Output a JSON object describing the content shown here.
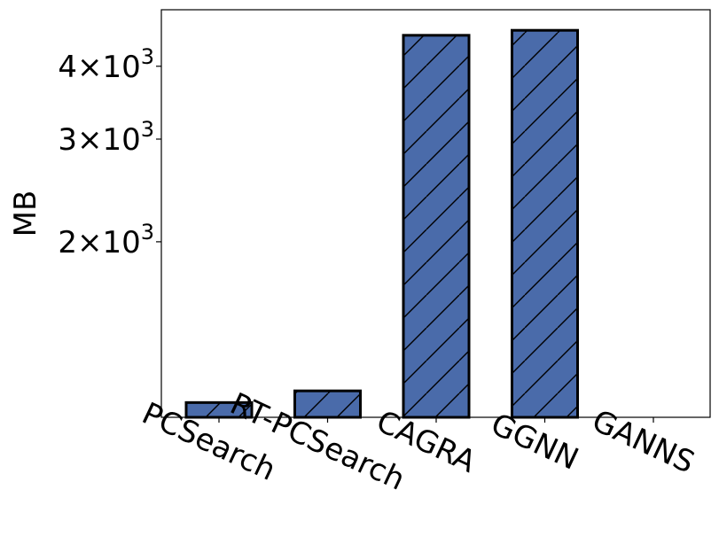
{
  "chart_data": {
    "type": "bar",
    "yscale": "log",
    "ylabel": "MB",
    "xlabel": "",
    "title": "",
    "categories": [
      "PCSearch",
      "RT-PCSearch",
      "CAGRA",
      "GGNN",
      "GANNS"
    ],
    "values": [
      1060,
      1110,
      4520,
      4610,
      null
    ],
    "ylim": [
      1000,
      5000
    ],
    "yticks": [
      {
        "value": 2000,
        "mantissa": "2",
        "base": "10",
        "exp": "3"
      },
      {
        "value": 3000,
        "mantissa": "3",
        "base": "10",
        "exp": "3"
      },
      {
        "value": 4000,
        "mantissa": "4",
        "base": "10",
        "exp": "3"
      }
    ],
    "bar_color": "#4a6baa",
    "edge_color": "#000000",
    "hatch": "diagonal",
    "grid": false,
    "legend": "none"
  }
}
